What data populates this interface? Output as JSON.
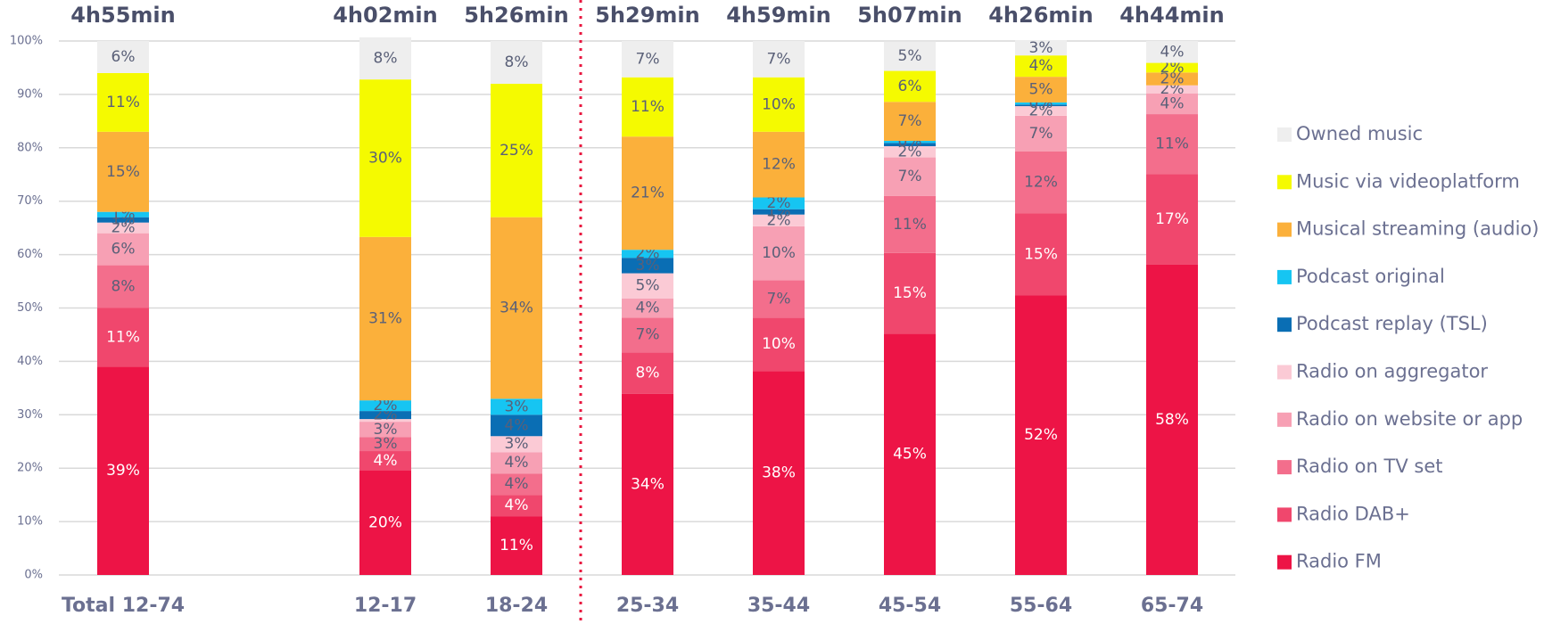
{
  "chart_data": {
    "type": "stacked_bar",
    "categories": [
      "Total 12-74",
      null,
      "12-17",
      "18-24",
      "25-34",
      "35-44",
      "45-54",
      "55-64",
      "65-74"
    ],
    "totals": [
      "4h55min",
      null,
      "4h02min",
      "5h26min",
      "5h29min",
      "4h59min",
      "5h07min",
      "4h26min",
      "4h44min"
    ],
    "ylim": [
      0,
      100
    ],
    "yticks": [
      {
        "value": 0,
        "label": "0%"
      },
      {
        "value": 10,
        "label": "10%"
      },
      {
        "value": 20,
        "label": "20%"
      },
      {
        "value": 30,
        "label": "30%"
      },
      {
        "value": 40,
        "label": "40%"
      },
      {
        "value": 50,
        "label": "50%"
      },
      {
        "value": 60,
        "label": "60%"
      },
      {
        "value": 70,
        "label": "70%"
      },
      {
        "value": 80,
        "label": "80%"
      },
      {
        "value": 90,
        "label": "90%"
      },
      {
        "value": 100,
        "label": "100%"
      }
    ],
    "grid": true,
    "legend": "right",
    "series": [
      {
        "name": "Radio FM",
        "color": "#ed1446",
        "values": [
          39,
          null,
          19.6,
          11,
          33.9,
          38.2,
          45.2,
          52.4,
          58.1
        ],
        "value_labels": [
          "39%",
          null,
          "20%",
          "11%",
          "34%",
          "38%",
          "45%",
          "52%",
          "58%"
        ]
      },
      {
        "name": "Radio DAB+",
        "color": "#f0476d",
        "values": [
          11,
          null,
          3.6,
          4,
          7.8,
          10,
          15.1,
          15.3,
          17
        ],
        "value_labels": [
          "11%",
          null,
          "4%",
          "4%",
          "8%",
          "10%",
          "15%",
          "15%",
          "17%"
        ]
      },
      {
        "name": "Radio on TV set",
        "color": "#f36e8c",
        "values": [
          8,
          null,
          2.6,
          4,
          6.5,
          7,
          10.7,
          11.6,
          11.2
        ],
        "value_labels": [
          "8%",
          null,
          "3%",
          "4%",
          "7%",
          "7%",
          "11%",
          "12%",
          "11%"
        ]
      },
      {
        "name": "Radio on website or app",
        "color": "#f7a0b4",
        "values": [
          6,
          null,
          2.9,
          4,
          3.6,
          10.1,
          7.2,
          6.7,
          3.9
        ],
        "value_labels": [
          "6%",
          null,
          "3%",
          "4%",
          "4%",
          "10%",
          "7%",
          "7%",
          "4%"
        ]
      },
      {
        "name": "Radio on aggregator",
        "color": "#fbcad5",
        "values": [
          2,
          null,
          0.5,
          3,
          4.7,
          2.2,
          2.1,
          1.8,
          1.5
        ],
        "value_labels": [
          "2%",
          null,
          null,
          "3%",
          "5%",
          "2%",
          "2%",
          "2%",
          "2%"
        ]
      },
      {
        "name": "Podcast replay (TSL)",
        "color": "#0a6eb4",
        "values": [
          1,
          null,
          1.5,
          4,
          2.9,
          1,
          0.6,
          0.3,
          0
        ],
        "value_labels": [
          "1%",
          null,
          "2%",
          "4%",
          "3%",
          "1%",
          null,
          null,
          null
        ]
      },
      {
        "name": "Podcast original",
        "color": "#16c5f2",
        "values": [
          1,
          null,
          2,
          3,
          1.5,
          2.2,
          0.4,
          0.4,
          0
        ],
        "value_labels": [
          "1%",
          null,
          "2%",
          "3%",
          "2%",
          "2%",
          "0%",
          "0%",
          null
        ]
      },
      {
        "name": "Musical streaming (audio)",
        "color": "#fbb03b",
        "values": [
          15,
          null,
          30.6,
          34,
          21.2,
          12.3,
          7.3,
          4.8,
          2.4
        ],
        "value_labels": [
          "15%",
          null,
          "31%",
          "34%",
          "21%",
          "12%",
          "7%",
          "5%",
          "2%"
        ]
      },
      {
        "name": "Music via videoplatform",
        "color": "#f5fa00",
        "values": [
          11,
          null,
          29.5,
          25,
          11.1,
          10.2,
          5.8,
          4,
          1.8
        ],
        "value_labels": [
          "11%",
          null,
          "30%",
          "25%",
          "11%",
          "10%",
          "6%",
          "4%",
          "2%"
        ]
      },
      {
        "name": "Owned music",
        "color": "#eeeeee",
        "values": [
          6,
          null,
          7.9,
          8,
          6.8,
          6.8,
          5.5,
          2.8,
          4.1
        ],
        "value_labels": [
          "6%",
          null,
          "8%",
          "8%",
          "7%",
          "7%",
          "5%",
          "3%",
          "4%"
        ]
      }
    ]
  }
}
